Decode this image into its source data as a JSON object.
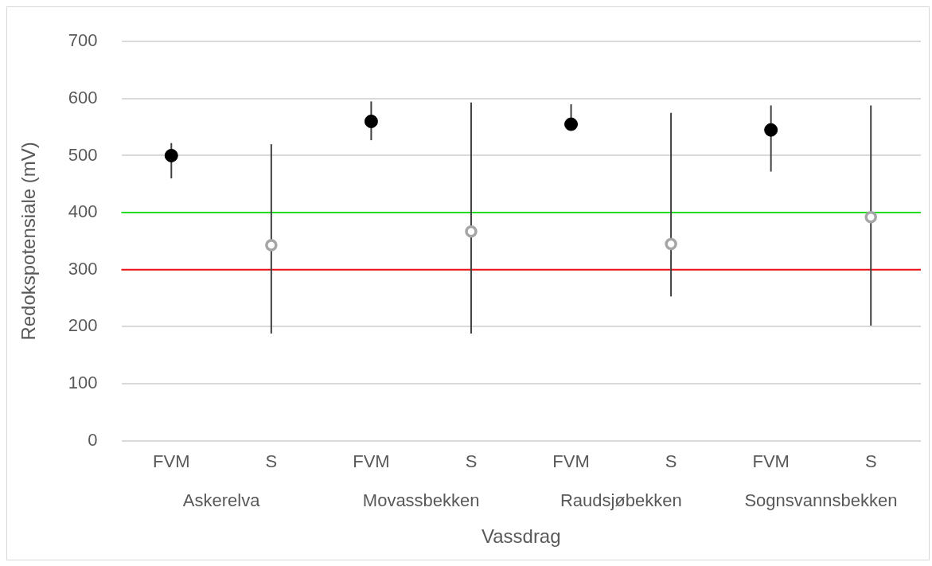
{
  "chart_data": {
    "type": "scatter",
    "xlabel": "Vassdrag",
    "ylabel": "Redokspotensiale (mV)",
    "categories": [
      "FVM",
      "S",
      "FVM",
      "S",
      "FVM",
      "S",
      "FVM",
      "S"
    ],
    "annotations": [
      "Askerelva",
      "Movassbekken",
      "Raudsjøbekken",
      "Sognsvannsbekken"
    ],
    "series": [
      {
        "color": "#000000",
        "values": [
          500,
          null,
          560,
          null,
          555,
          null,
          545,
          null
        ],
        "errors": [
          [
            460,
            522
          ],
          null,
          [
            527,
            595
          ],
          null,
          [
            555,
            590
          ],
          null,
          [
            472,
            588
          ],
          null
        ]
      },
      {
        "color": "#a6a6a6",
        "values": [
          null,
          343,
          null,
          367,
          null,
          345,
          null,
          392
        ],
        "errors": [
          null,
          [
            188,
            520
          ],
          null,
          [
            188,
            593
          ],
          null,
          [
            253,
            575
          ],
          null,
          [
            202,
            588
          ]
        ]
      }
    ],
    "ylim": [
      0,
      700
    ],
    "yticks": [
      0,
      100,
      200,
      300,
      400,
      500,
      600,
      700
    ],
    "grid": "y",
    "legend": false,
    "marker": "circle",
    "ref_lines": [
      {
        "axis": "y",
        "value": 400,
        "color": "#22dd22"
      },
      {
        "axis": "y",
        "value": 300,
        "color": "#ee1111"
      }
    ]
  }
}
